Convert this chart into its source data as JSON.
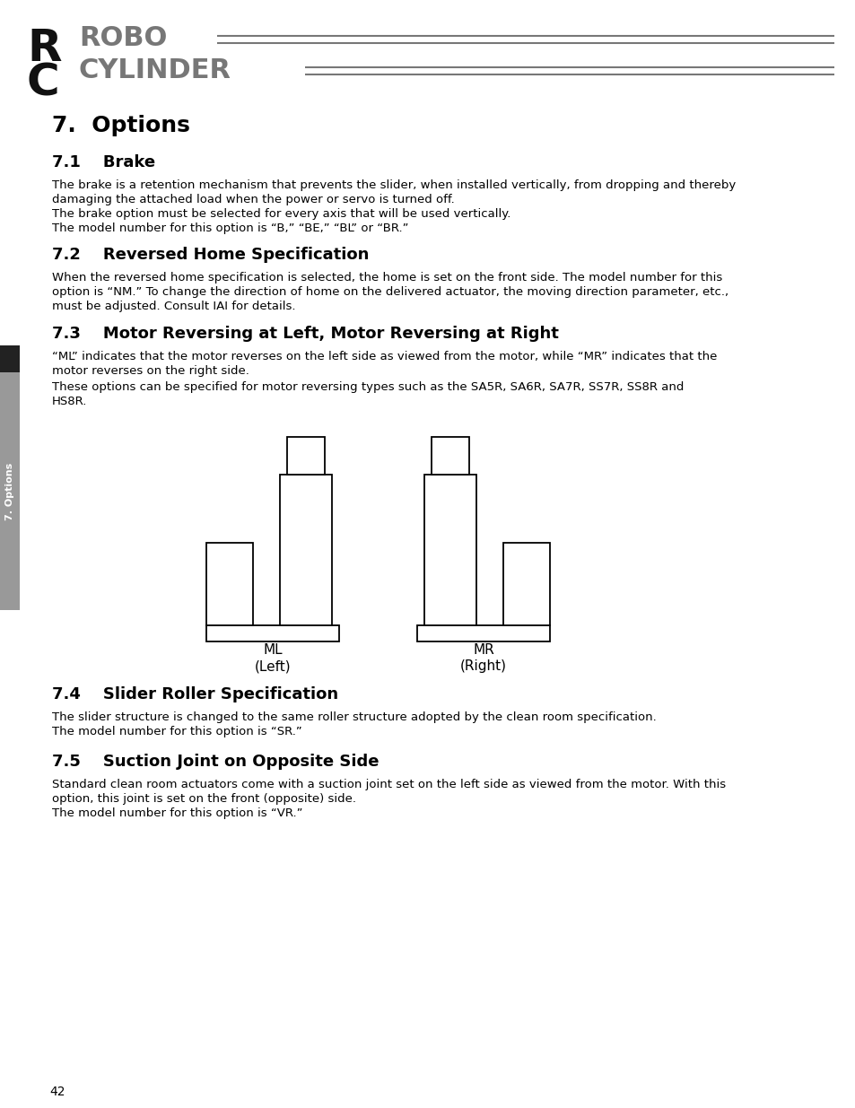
{
  "bg_color": "#ffffff",
  "page_number": "42",
  "section_main_title": "7.  Options",
  "section_71_title": "7.1    Brake",
  "section_71_body": "The brake is a retention mechanism that prevents the slider, when installed vertically, from dropping and thereby\ndamaging the attached load when the power or servo is turned off.\nThe brake option must be selected for every axis that will be used vertically.\nThe model number for this option is “B,” “BE,” “BL” or “BR.”",
  "section_72_title": "7.2    Reversed Home Specification",
  "section_72_body": "When the reversed home specification is selected, the home is set on the front side. The model number for this\noption is “NM.” To change the direction of home on the delivered actuator, the moving direction parameter, etc.,\nmust be adjusted. Consult IAI for details.",
  "section_73_title": "7.3    Motor Reversing at Left, Motor Reversing at Right",
  "section_73_body1": "“ML” indicates that the motor reverses on the left side as viewed from the motor, while “MR” indicates that the\nmotor reverses on the right side.",
  "section_73_body2": "These options can be specified for motor reversing types such as the SA5R, SA6R, SA7R, SS7R, SS8R and\nHS8R.",
  "ml_label": "ML",
  "ml_sub": "(Left)",
  "mr_label": "MR",
  "mr_sub": "(Right)",
  "section_74_title": "7.4    Slider Roller Specification",
  "section_74_body": "The slider structure is changed to the same roller structure adopted by the clean room specification.\nThe model number for this option is “SR.”",
  "section_75_title": "7.5    Suction Joint on Opposite Side",
  "section_75_body": "Standard clean room actuators come with a suction joint set on the left side as viewed from the motor. With this\noption, this joint is set on the front (opposite) side.\nThe model number for this option is “VR.”",
  "sidebar_color": "#555555",
  "sidebar_dark_color": "#222222",
  "sidebar_text": "7. Options",
  "line_color": "#666666",
  "logo_r_color": "#111111",
  "logo_rc_gray": "#777777"
}
